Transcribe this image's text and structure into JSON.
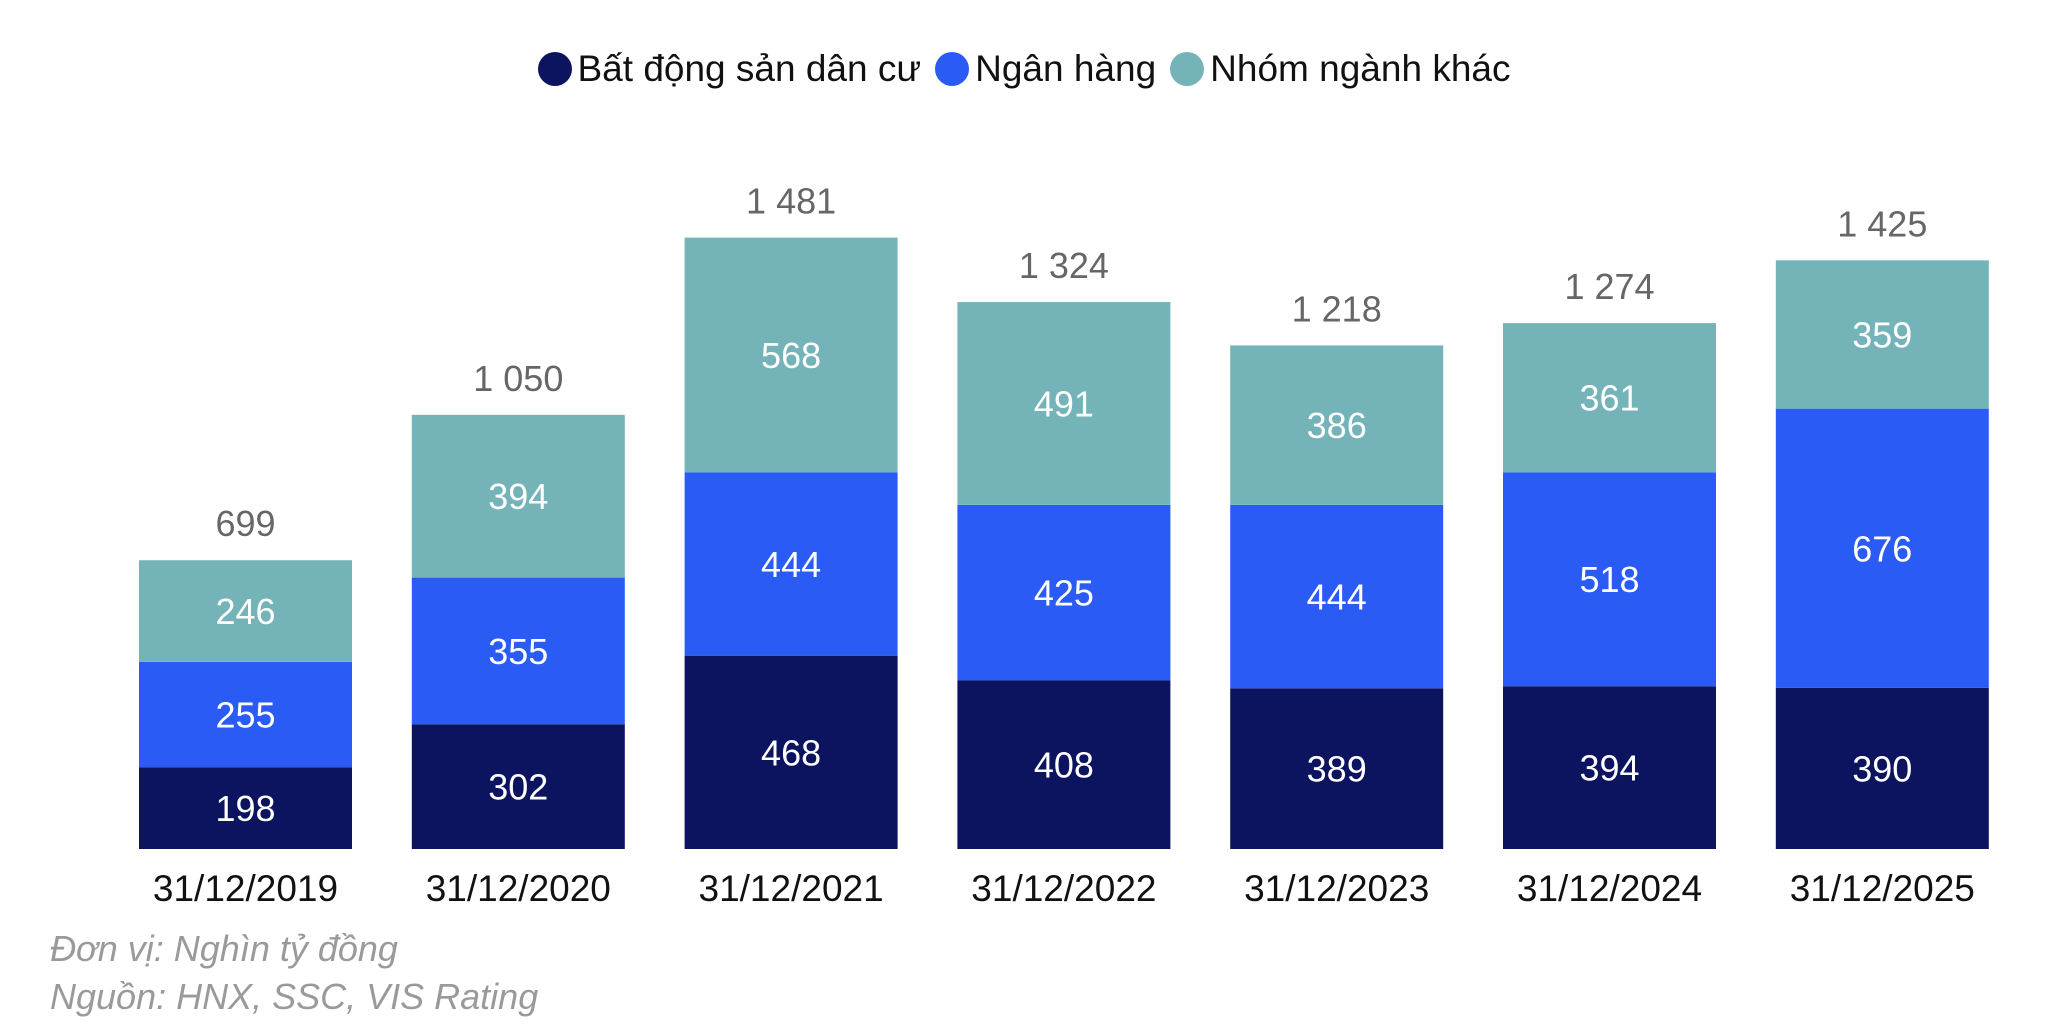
{
  "chart_data": {
    "type": "bar",
    "stacked": true,
    "categories": [
      "31/12/2019",
      "31/12/2020",
      "31/12/2021",
      "31/12/2022",
      "31/12/2023",
      "31/12/2024",
      "31/12/2025"
    ],
    "series": [
      {
        "name": "Bất động sản dân cư",
        "color": "#0c1460",
        "values": [
          198,
          302,
          468,
          408,
          389,
          394,
          390
        ]
      },
      {
        "name": "Ngân hàng",
        "color": "#2a5cf5",
        "values": [
          255,
          355,
          444,
          425,
          444,
          518,
          676
        ]
      },
      {
        "name": "Nhóm ngành khác",
        "color": "#74b4b9",
        "values": [
          246,
          394,
          568,
          491,
          386,
          361,
          359
        ]
      }
    ],
    "totals": [
      "699",
      "1 050",
      "1 481",
      "1 324",
      "1 218",
      "1 274",
      "1 425"
    ],
    "totals_values": [
      699,
      1050,
      1481,
      1324,
      1218,
      1274,
      1425
    ],
    "legend_position": "top",
    "grid": false,
    "ylim": [
      0,
      1500
    ]
  },
  "footnotes": {
    "unit": "Đơn vị: Nghìn tỷ đồng",
    "source": "Nguồn: HNX, SSC, VIS Rating"
  }
}
